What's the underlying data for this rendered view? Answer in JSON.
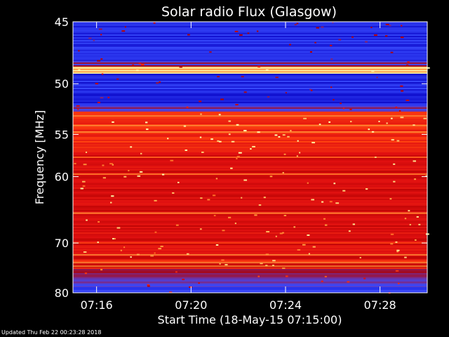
{
  "chart_data": {
    "type": "heatmap",
    "title": "Solar radio Flux (Glasgow)",
    "xlabel": "Start Time (18-May-15 07:15:00)",
    "ylabel": "Frequency [MHz]",
    "xlim": [
      "07:15:00",
      "07:30:00"
    ],
    "ylim": [
      45,
      80
    ],
    "y_scale": "reciprocal",
    "x_ticks": [
      "07:16",
      "07:20",
      "07:24",
      "07:28"
    ],
    "y_ticks": [
      45,
      50,
      55,
      60,
      70,
      80
    ],
    "colormap": [
      "#000060",
      "#1010d0",
      "#3a4cff",
      "#7a2a8a",
      "#b00000",
      "#e01010",
      "#ff4010",
      "#ffa040",
      "#ffffb0"
    ],
    "frequency_bands": [
      {
        "range_mhz": [
          45.0,
          48.0
        ],
        "level": "low"
      },
      {
        "range_mhz": [
          48.5,
          49.0
        ],
        "level": "very high"
      },
      {
        "range_mhz": [
          49.0,
          52.0
        ],
        "level": "low"
      },
      {
        "range_mhz": [
          52.5,
          57.0
        ],
        "level": "high"
      },
      {
        "range_mhz": [
          57.0,
          80.0
        ],
        "level": "medium"
      }
    ],
    "grid": false,
    "legend": "none"
  },
  "footer": {
    "updated": "Updated Thu Feb 22 00:23:28 2018"
  }
}
